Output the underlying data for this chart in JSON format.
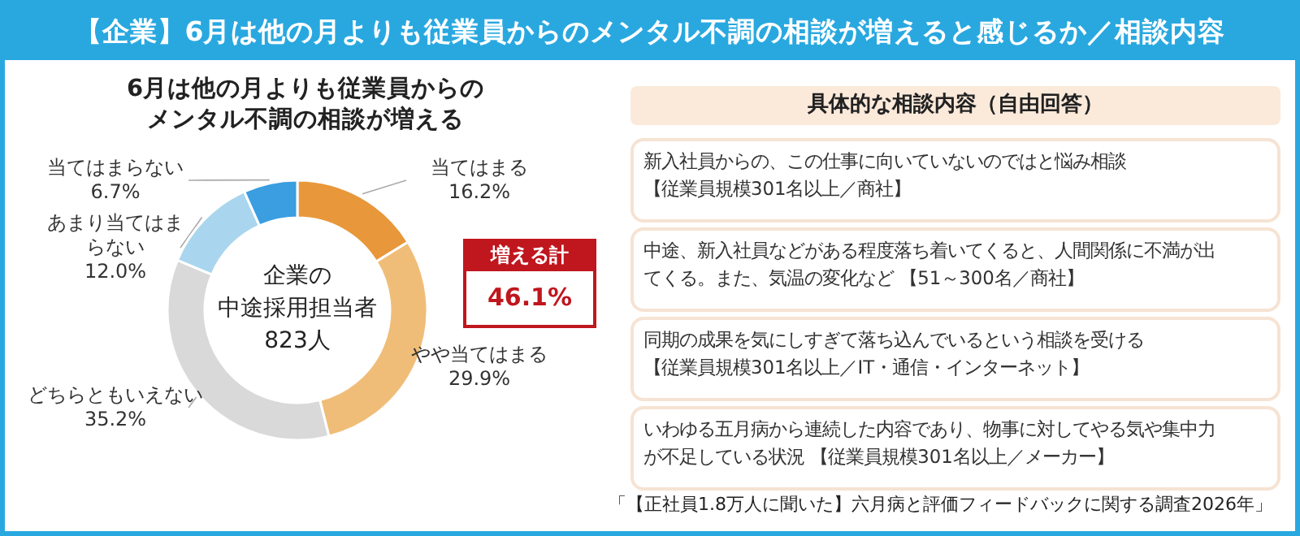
{
  "chart_data": [
    {
      "type": "donut",
      "title": "【企業】6月は他の月よりも従業員からのメンタル不調の相談が増えると感じるか／相談内容",
      "subtitle": "6月は他の月よりも従業員からのメンタル不調の相談が増える",
      "categories": [
        "当てはまる",
        "やや当てはまる",
        "どちらともいえない",
        "あまり当てはまらない",
        "当てはまらない"
      ],
      "values": [
        16.2,
        29.9,
        35.2,
        12.0,
        6.7
      ],
      "value_labels": [
        "16.2%",
        "29.9%",
        "35.2%",
        "12.0%",
        "6.7%"
      ],
      "colors": [
        "#e8973a",
        "#f0bd78",
        "#d9d9d9",
        "#a9d6ee",
        "#3a9ee0"
      ],
      "annotations": [
        "企業の",
        "中途採用担当者",
        "823人",
        "増える計",
        "46.1%"
      ]
    },
    {
      "type": "other",
      "title": "具体的な相談内容（自由回答）",
      "annotations": [
        "新入社員からの、この仕事に向いていないのではと悩み相談【従業員規模301名以上／商社】",
        "中途、新入社員などがある程度落ち着いてくると、人間関係に不満が出てくる。また、気温の変化など 【51～300名／商社】",
        "同期の成果を気にしすぎて落ち込んでいるという相談を受ける【従業員規模301名以上／IT・通信・インターネット】",
        "いわゆる五月病から連続した内容であり、物事に対してやる気や集中力が不足している状況 【従業員規模301名以上／メーカー】",
        "「【正社員1.8万人に聞いた】六月病と評価フィードバックに関する調査2026年」"
      ]
    }
  ]
}
